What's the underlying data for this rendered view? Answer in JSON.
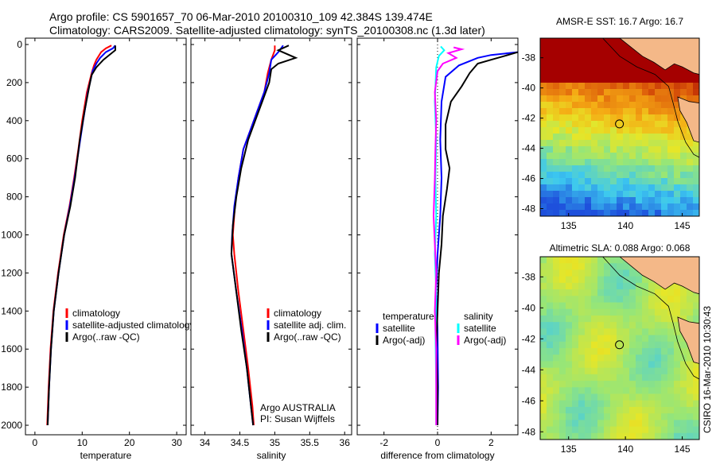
{
  "header": {
    "line1": "Argo profile: CS 5901657_70 06-Mar-2010 20100310_109 42.384S 139.474E",
    "line2": "Climatology: CARS2009. Satellite-adjusted climatology: synTS_20100308.nc (1.3d later)"
  },
  "chart_data": [
    {
      "id": "temperature",
      "type": "line",
      "xlabel": "temperature",
      "ylabel": "",
      "xlim": [
        -2,
        32
      ],
      "ylim": [
        2050,
        0
      ],
      "y_reversed": true,
      "xticks": [
        "0",
        "10",
        "20",
        "30"
      ],
      "yticks": [
        "0",
        "200",
        "400",
        "600",
        "800",
        "1000",
        "1200",
        "1400",
        "1600",
        "1800",
        "2000"
      ],
      "legend": [
        "climatology",
        "satellite-adjusted climatology",
        "Argo(..raw -QC)"
      ],
      "legend_position": "lower-right",
      "series": [
        {
          "name": "climatology",
          "color": "#ff0000",
          "points": [
            [
              16.2,
              5
            ],
            [
              15.0,
              20
            ],
            [
              14.0,
              40
            ],
            [
              13.0,
              80
            ],
            [
              12.5,
              110
            ],
            [
              12.0,
              150
            ],
            [
              11.0,
              250
            ],
            [
              10.0,
              400
            ],
            [
              9.2,
              550
            ],
            [
              8.3,
              700
            ],
            [
              7.3,
              850
            ],
            [
              6.1,
              1000
            ],
            [
              4.9,
              1200
            ],
            [
              3.9,
              1400
            ],
            [
              3.3,
              1600
            ],
            [
              2.9,
              1800
            ],
            [
              2.6,
              2000
            ]
          ]
        },
        {
          "name": "satellite-adjusted climatology",
          "color": "#0000ff",
          "points": [
            [
              17.0,
              5
            ],
            [
              16.5,
              20
            ],
            [
              15.0,
              40
            ],
            [
              13.8,
              70
            ],
            [
              13.0,
              100
            ],
            [
              12.2,
              140
            ],
            [
              11.2,
              250
            ],
            [
              10.2,
              400
            ],
            [
              9.3,
              550
            ],
            [
              8.4,
              700
            ],
            [
              7.4,
              850
            ],
            [
              6.2,
              1000
            ],
            [
              5.0,
              1200
            ],
            [
              4.0,
              1400
            ],
            [
              3.4,
              1600
            ],
            [
              3.0,
              1800
            ],
            [
              2.7,
              2000
            ]
          ]
        },
        {
          "name": "Argo(..raw -QC)",
          "color": "#000000",
          "points": [
            [
              17.0,
              5
            ],
            [
              17.0,
              30
            ],
            [
              16.0,
              50
            ],
            [
              14.5,
              80
            ],
            [
              13.0,
              120
            ],
            [
              12.0,
              160
            ],
            [
              11.5,
              220
            ],
            [
              10.5,
              350
            ],
            [
              9.5,
              500
            ],
            [
              8.5,
              700
            ],
            [
              7.5,
              850
            ],
            [
              6.2,
              1000
            ],
            [
              5.0,
              1200
            ],
            [
              4.0,
              1400
            ],
            [
              3.4,
              1600
            ],
            [
              3.0,
              1800
            ],
            [
              2.7,
              2000
            ]
          ]
        }
      ]
    },
    {
      "id": "salinity",
      "type": "line",
      "xlabel": "salinity",
      "ylabel": "",
      "xlim": [
        33.8,
        36.1
      ],
      "ylim": [
        2050,
        0
      ],
      "y_reversed": true,
      "xticks": [
        "34",
        "34.5",
        "35",
        "35.5",
        "36"
      ],
      "yticks": [],
      "legend": [
        "climatology",
        "satellite adj. clim.",
        "Argo(..raw -QC)"
      ],
      "legend_position": "lower-right",
      "annotations": [
        "Argo AUSTRALIA",
        "PI: Susan Wijffels"
      ],
      "series": [
        {
          "name": "climatology",
          "color": "#ff0000",
          "points": [
            [
              35.0,
              5
            ],
            [
              35.0,
              30
            ],
            [
              34.95,
              80
            ],
            [
              34.9,
              150
            ],
            [
              34.85,
              250
            ],
            [
              34.75,
              350
            ],
            [
              34.65,
              450
            ],
            [
              34.55,
              550
            ],
            [
              34.48,
              700
            ],
            [
              34.43,
              850
            ],
            [
              34.4,
              1000
            ],
            [
              34.42,
              1100
            ],
            [
              34.48,
              1300
            ],
            [
              34.55,
              1500
            ],
            [
              34.62,
              1700
            ],
            [
              34.68,
              1900
            ],
            [
              34.7,
              2000
            ]
          ]
        },
        {
          "name": "satellite adj. clim.",
          "color": "#0000ff",
          "points": [
            [
              35.12,
              5
            ],
            [
              35.05,
              40
            ],
            [
              34.95,
              80
            ],
            [
              34.92,
              150
            ],
            [
              34.85,
              250
            ],
            [
              34.75,
              350
            ],
            [
              34.65,
              450
            ],
            [
              34.55,
              550
            ],
            [
              34.48,
              700
            ],
            [
              34.42,
              850
            ],
            [
              34.39,
              1000
            ],
            [
              34.38,
              1100
            ],
            [
              34.45,
              1300
            ],
            [
              34.53,
              1500
            ],
            [
              34.6,
              1700
            ],
            [
              34.66,
              1900
            ],
            [
              34.69,
              2000
            ]
          ]
        },
        {
          "name": "Argo(..raw -QC)",
          "color": "#000000",
          "points": [
            [
              35.2,
              5
            ],
            [
              35.05,
              30
            ],
            [
              35.3,
              70
            ],
            [
              35.05,
              100
            ],
            [
              34.95,
              130
            ],
            [
              34.92,
              200
            ],
            [
              34.82,
              300
            ],
            [
              34.72,
              400
            ],
            [
              34.62,
              500
            ],
            [
              34.52,
              650
            ],
            [
              34.45,
              800
            ],
            [
              34.4,
              950
            ],
            [
              34.38,
              1100
            ],
            [
              34.45,
              1300
            ],
            [
              34.52,
              1500
            ],
            [
              34.6,
              1700
            ],
            [
              34.66,
              1900
            ],
            [
              34.69,
              2000
            ]
          ]
        }
      ]
    },
    {
      "id": "difference",
      "type": "line",
      "xlabel": "difference from climatology",
      "ylabel": "",
      "xlim": [
        -3,
        3
      ],
      "ylim": [
        2050,
        0
      ],
      "y_reversed": true,
      "xticks": [
        "-2",
        "0",
        "2"
      ],
      "yticks": [],
      "legend": [
        "temperature",
        "satellite",
        "Argo(-adj)",
        "salinity",
        "satellite",
        "Argo(-adj)"
      ],
      "legend_position": "lower-center",
      "series": [
        {
          "name": "satellite",
          "group": "temperature",
          "color": "#0000ff",
          "points": [
            [
              3.0,
              40
            ],
            [
              2.0,
              55
            ],
            [
              1.5,
              70
            ],
            [
              0.8,
              110
            ],
            [
              0.3,
              170
            ],
            [
              0.15,
              300
            ],
            [
              0.1,
              500
            ],
            [
              0.15,
              700
            ],
            [
              0.1,
              900
            ],
            [
              0.0,
              1100
            ],
            [
              -0.05,
              1300
            ],
            [
              0.0,
              1500
            ],
            [
              0.02,
              1800
            ],
            [
              0.0,
              2000
            ]
          ]
        },
        {
          "name": "Argo(-adj)",
          "group": "temperature",
          "color": "#000000",
          "points": [
            [
              3.0,
              40
            ],
            [
              2.5,
              60
            ],
            [
              2.0,
              80
            ],
            [
              1.5,
              100
            ],
            [
              1.2,
              150
            ],
            [
              0.9,
              220
            ],
            [
              0.5,
              300
            ],
            [
              0.3,
              420
            ],
            [
              0.3,
              550
            ],
            [
              0.45,
              650
            ],
            [
              0.35,
              760
            ],
            [
              0.2,
              900
            ],
            [
              0.15,
              1050
            ],
            [
              0.05,
              1200
            ],
            [
              0.0,
              1400
            ],
            [
              -0.05,
              1600
            ],
            [
              0.0,
              1800
            ],
            [
              0.0,
              2000
            ]
          ]
        },
        {
          "name": "satellite",
          "group": "salinity",
          "color": "#00ffff",
          "points": [
            [
              0.12,
              10
            ],
            [
              0.25,
              30
            ],
            [
              0.05,
              60
            ],
            [
              -0.05,
              120
            ],
            [
              -0.1,
              300
            ],
            [
              -0.05,
              500
            ],
            [
              -0.08,
              700
            ],
            [
              -0.05,
              900
            ],
            [
              -0.1,
              1100
            ],
            [
              -0.05,
              1300
            ],
            [
              -0.08,
              1500
            ],
            [
              -0.05,
              1800
            ],
            [
              -0.05,
              2000
            ]
          ]
        },
        {
          "name": "Argo(-adj)",
          "group": "salinity",
          "color": "#ff00ff",
          "points": [
            [
              0.6,
              15
            ],
            [
              0.9,
              25
            ],
            [
              0.4,
              45
            ],
            [
              0.7,
              70
            ],
            [
              0.2,
              100
            ],
            [
              0.0,
              140
            ],
            [
              -0.1,
              250
            ],
            [
              -0.05,
              400
            ],
            [
              -0.08,
              550
            ],
            [
              -0.1,
              700
            ],
            [
              -0.15,
              900
            ],
            [
              -0.1,
              1050
            ],
            [
              -0.05,
              1200
            ],
            [
              -0.1,
              1400
            ],
            [
              -0.05,
              1600
            ],
            [
              -0.05,
              2000
            ]
          ]
        }
      ]
    },
    {
      "id": "sst-map",
      "type": "heatmap",
      "title": "AMSR-E SST: 16.7 Argo: 16.7",
      "xticks": [
        "135",
        "140",
        "145"
      ],
      "yticks": [
        "-38",
        "-40",
        "-42",
        "-44",
        "-46",
        "-48"
      ],
      "xlim": [
        132.5,
        146.5
      ],
      "ylim": [
        -48.5,
        -36.7
      ],
      "marker": {
        "lon": 139.474,
        "lat": -42.384
      }
    },
    {
      "id": "sla-map",
      "type": "heatmap",
      "title": "Altimetric SLA: 0.088 Argo: 0.068",
      "xticks": [
        "135",
        "140",
        "145"
      ],
      "yticks": [
        "-38",
        "-40",
        "-42",
        "-44",
        "-46",
        "-48"
      ],
      "xlim": [
        132.5,
        146.5
      ],
      "ylim": [
        -48.5,
        -36.7
      ],
      "marker": {
        "lon": 139.474,
        "lat": -42.384
      }
    }
  ],
  "credit": "CSIRO 16-Mar-2010 10:30:43",
  "colors": {
    "land": "#f4b888",
    "marker": "#000000"
  }
}
